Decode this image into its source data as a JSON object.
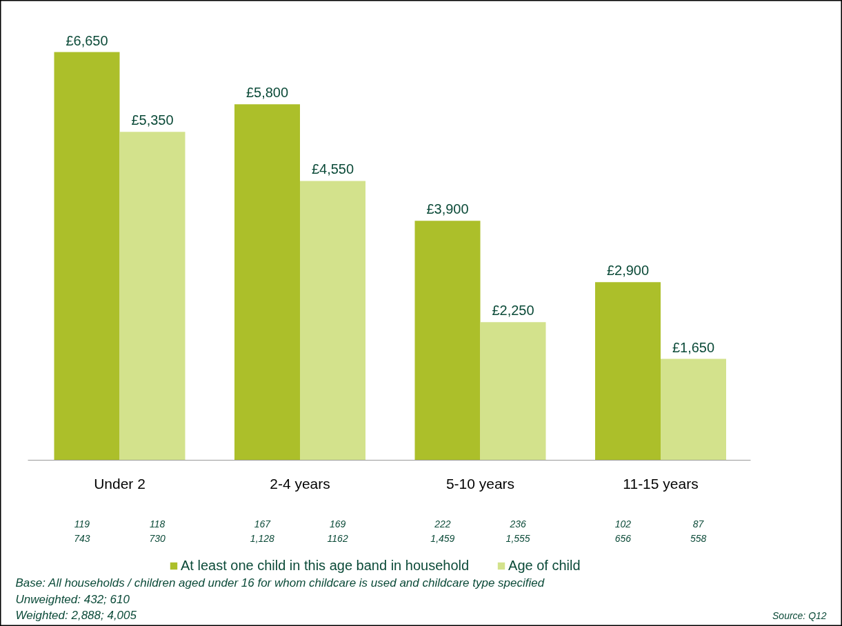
{
  "chart_data": {
    "type": "bar",
    "categories": [
      "Under 2",
      "2-4 years",
      "5-10 years",
      "11-15 years"
    ],
    "series": [
      {
        "name": "At least one child in this age band in household",
        "color": "#acbf2a",
        "values": [
          6650,
          5800,
          3900,
          2900
        ],
        "value_labels": [
          "£6,650",
          "£5,800",
          "£3,900",
          "£2,900"
        ]
      },
      {
        "name": "Age of child",
        "color": "#d3e28c",
        "values": [
          5350,
          4550,
          2250,
          1650
        ],
        "value_labels": [
          "£5,350",
          "£4,550",
          "£2,250",
          "£1,650"
        ]
      }
    ],
    "data_labels": true,
    "legend": "bottom",
    "grid": false,
    "annotations": [
      "119\n743",
      "118\n730",
      "167\n1,128",
      "169\n1162",
      "222\n1,459",
      "236\n1,555",
      "102\n656",
      "87\n558",
      "Base: All households / children aged under 16 for whom childcare is used and childcare type specified",
      "Unweighted: 432; 610",
      "Weighted: 2,888; 4,005",
      "Source:  Q12"
    ]
  }
}
